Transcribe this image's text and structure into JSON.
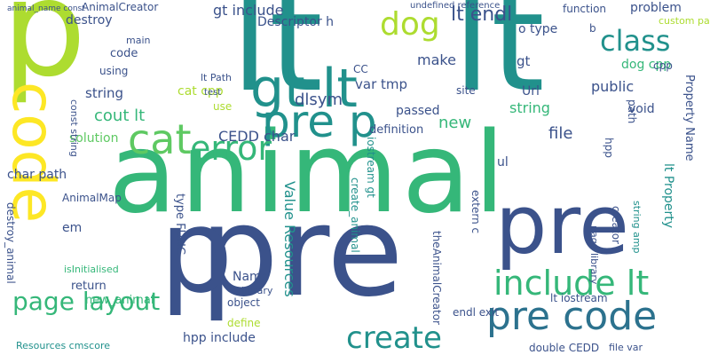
{
  "palette": {
    "navy": "#3b528b",
    "purple": "#482878",
    "teal": "#21918c",
    "blue": "#2c728e",
    "green": "#35b779",
    "mint": "#5ec962",
    "lime": "#addc30",
    "yellow": "#fde725"
  },
  "words": [
    "p",
    "lt",
    "lt",
    "pre",
    "animal",
    "p",
    "pre",
    "code",
    "gt lt",
    "pre p",
    "error",
    "cat",
    "create",
    "include lt",
    "pre code",
    "page layout",
    "class",
    "dog",
    "lt endl",
    "gt include",
    "Descriptor h",
    "AnimalCreator",
    "destroy",
    "main",
    "code",
    "using",
    "string",
    "cout lt",
    "solution",
    "char path",
    "AnimalMap",
    "em",
    "isInitialised",
    "new_animal",
    "return",
    "destroy_animal",
    "Resources cmscore",
    "hpp include",
    "Name",
    "object",
    "define",
    "library",
    "Value Resources",
    "create_animal",
    "iostream gt",
    "theAnimalCreator",
    "extern c",
    "endl exit",
    "lt iostream",
    "double CEDD",
    "file var",
    "lt Property",
    "Property Name",
    "string amp",
    "creator",
    "public",
    "problem",
    "custom page",
    "function",
    "o type",
    "dog cpp",
    "Url",
    "void",
    "file",
    "hpp",
    "path",
    "page library",
    "make",
    "var tmp",
    "dlsym",
    "new",
    "passed",
    "definition",
    "CEDD char",
    "cat cpp",
    "use",
    "type FUNC",
    "ul",
    "site",
    "gt",
    "undefined reference",
    "string",
    "cpp",
    "test",
    "const string",
    "animal_name const",
    "CC",
    "lt Path",
    "b"
  ]
}
